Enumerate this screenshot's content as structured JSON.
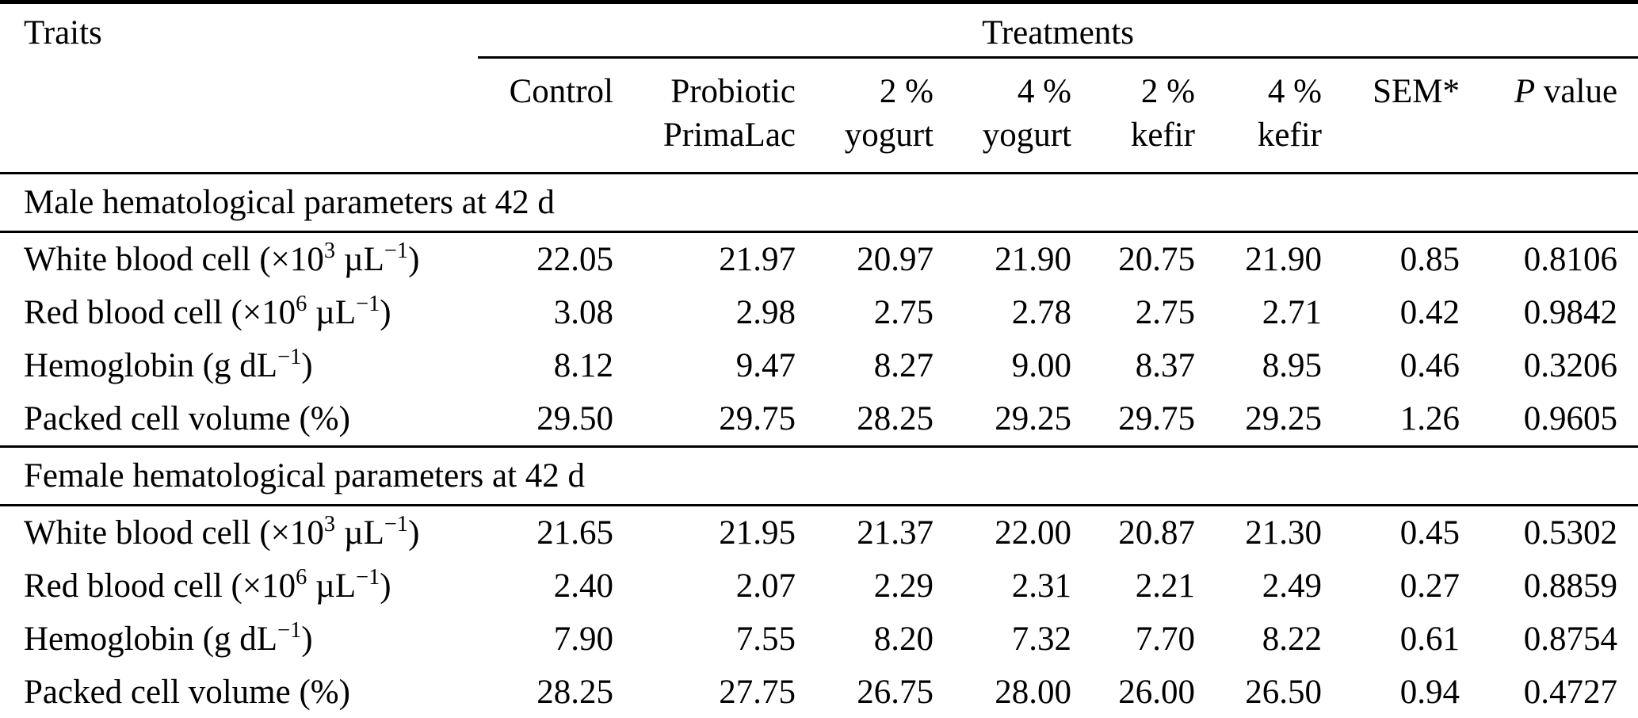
{
  "table": {
    "traits_header": "Traits",
    "treatments_header": "Treatments",
    "columns": [
      {
        "line1": "Control",
        "line2": ""
      },
      {
        "line1": "Probiotic",
        "line2": "PrimaLac"
      },
      {
        "line1": "2 %",
        "line2": "yogurt"
      },
      {
        "line1": "4 %",
        "line2": "yogurt"
      },
      {
        "line1": "2 %",
        "line2": "kefir"
      },
      {
        "line1": "4 %",
        "line2": "kefir"
      },
      {
        "line1": "SEM*",
        "line2": ""
      }
    ],
    "p_header": {
      "italic": "P",
      "rest": " value"
    }
  },
  "sections": [
    {
      "title": "Male hematological parameters at 42 d",
      "rows": [
        {
          "trait": [
            {
              "t": "White blood cell (×10"
            },
            {
              "t": "3",
              "sup": true
            },
            {
              "t": " µL"
            },
            {
              "t": "−1",
              "sup": true
            },
            {
              "t": ")"
            }
          ],
          "values": [
            "22.05",
            "21.97",
            "20.97",
            "21.90",
            "20.75",
            "21.90",
            "0.85",
            "0.8106"
          ]
        },
        {
          "trait": [
            {
              "t": "Red blood cell (×10"
            },
            {
              "t": "6",
              "sup": true
            },
            {
              "t": " µL"
            },
            {
              "t": "−1",
              "sup": true
            },
            {
              "t": ")"
            }
          ],
          "values": [
            "3.08",
            "2.98",
            "2.75",
            "2.78",
            "2.75",
            "2.71",
            "0.42",
            "0.9842"
          ]
        },
        {
          "trait": [
            {
              "t": "Hemoglobin (g dL"
            },
            {
              "t": "−1",
              "sup": true
            },
            {
              "t": ")"
            }
          ],
          "values": [
            "8.12",
            "9.47",
            "8.27",
            "9.00",
            "8.37",
            "8.95",
            "0.46",
            "0.3206"
          ]
        },
        {
          "trait": [
            {
              "t": "Packed cell volume (%)"
            }
          ],
          "values": [
            "29.50",
            "29.75",
            "28.25",
            "29.25",
            "29.75",
            "29.25",
            "1.26",
            "0.9605"
          ]
        }
      ]
    },
    {
      "title": "Female hematological parameters at 42 d",
      "rows": [
        {
          "trait": [
            {
              "t": "White blood cell (×10"
            },
            {
              "t": "3",
              "sup": true
            },
            {
              "t": " µL"
            },
            {
              "t": "−1",
              "sup": true
            },
            {
              "t": ")"
            }
          ],
          "values": [
            "21.65",
            "21.95",
            "21.37",
            "22.00",
            "20.87",
            "21.30",
            "0.45",
            "0.5302"
          ]
        },
        {
          "trait": [
            {
              "t": "Red blood cell (×10"
            },
            {
              "t": "6",
              "sup": true
            },
            {
              "t": " µL"
            },
            {
              "t": "−1",
              "sup": true
            },
            {
              "t": ")"
            }
          ],
          "values": [
            "2.40",
            "2.07",
            "2.29",
            "2.31",
            "2.21",
            "2.49",
            "0.27",
            "0.8859"
          ]
        },
        {
          "trait": [
            {
              "t": "Hemoglobin (g dL"
            },
            {
              "t": "−1",
              "sup": true
            },
            {
              "t": ")"
            }
          ],
          "values": [
            "7.90",
            "7.55",
            "8.20",
            "7.32",
            "7.70",
            "8.22",
            "0.61",
            "0.8754"
          ]
        },
        {
          "trait": [
            {
              "t": "Packed cell volume (%)"
            }
          ],
          "values": [
            "28.25",
            "27.75",
            "26.75",
            "28.00",
            "26.00",
            "26.50",
            "0.94",
            "0.4727"
          ]
        }
      ]
    }
  ],
  "colors": {
    "text": "#000000",
    "background": "#ffffff",
    "rule": "#000000"
  }
}
